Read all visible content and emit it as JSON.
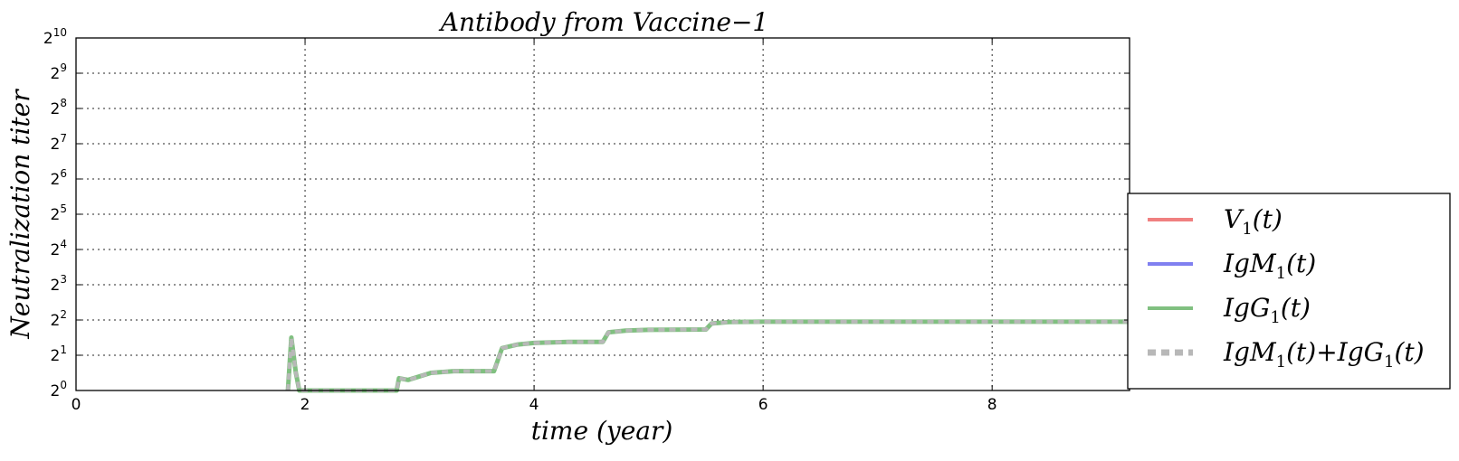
{
  "chart_data": {
    "type": "line",
    "title": "Antibody from Vaccine−1",
    "xlabel": "time (year)",
    "ylabel": "Neutralization titer",
    "xlim": [
      0,
      9.2
    ],
    "ylim_log2": [
      0,
      10
    ],
    "y_scale": "log2",
    "x_ticks": [
      0,
      2,
      4,
      6,
      8
    ],
    "y_ticks_exponent": [
      0,
      1,
      2,
      3,
      4,
      5,
      6,
      7,
      8,
      9,
      10
    ],
    "y_tick_base": "2",
    "grid": true,
    "legend_placement": "lower-right outside",
    "series": [
      {
        "name": "V₁(t)",
        "label_main": "V",
        "label_sub": "1",
        "label_rest": "(t)",
        "color": "#f08080",
        "style": "solid",
        "log2_points": []
      },
      {
        "name": "IgM₁(t)",
        "label_main": "IgM",
        "label_sub": "1",
        "label_rest": "(t)",
        "color": "#8080f0",
        "style": "solid",
        "log2_points": []
      },
      {
        "name": "IgG₁(t)",
        "label_main": "IgG",
        "label_sub": "1",
        "label_rest": "(t)",
        "color": "#80c080",
        "style": "solid",
        "log2_points": [
          [
            1.85,
            0
          ],
          [
            1.88,
            1.5
          ],
          [
            1.92,
            0.5
          ],
          [
            1.95,
            0
          ],
          [
            2.8,
            0
          ],
          [
            2.82,
            0.35
          ],
          [
            2.9,
            0.3
          ],
          [
            3.1,
            0.5
          ],
          [
            3.3,
            0.55
          ],
          [
            3.65,
            0.55
          ],
          [
            3.72,
            1.2
          ],
          [
            3.85,
            1.3
          ],
          [
            4.0,
            1.35
          ],
          [
            4.3,
            1.38
          ],
          [
            4.6,
            1.38
          ],
          [
            4.65,
            1.65
          ],
          [
            4.8,
            1.7
          ],
          [
            5.0,
            1.72
          ],
          [
            5.5,
            1.73
          ],
          [
            5.55,
            1.9
          ],
          [
            5.7,
            1.94
          ],
          [
            6.0,
            1.95
          ],
          [
            7.0,
            1.95
          ],
          [
            8.0,
            1.95
          ],
          [
            9.2,
            1.95
          ]
        ]
      },
      {
        "name": "IgM₁(t)+IgG₁(t)",
        "label_main": "IgM",
        "label_sub": "1",
        "label_rest": "(t)+IgG",
        "label_sub2": "1",
        "label_rest2": "(t)",
        "color": "#b8b8b8",
        "style": "dotted",
        "log2_points": [
          [
            1.85,
            0
          ],
          [
            1.88,
            1.5
          ],
          [
            1.92,
            0.5
          ],
          [
            1.95,
            0
          ],
          [
            2.8,
            0
          ],
          [
            2.82,
            0.35
          ],
          [
            2.9,
            0.3
          ],
          [
            3.1,
            0.5
          ],
          [
            3.3,
            0.55
          ],
          [
            3.65,
            0.55
          ],
          [
            3.72,
            1.2
          ],
          [
            3.85,
            1.3
          ],
          [
            4.0,
            1.35
          ],
          [
            4.3,
            1.38
          ],
          [
            4.6,
            1.38
          ],
          [
            4.65,
            1.65
          ],
          [
            4.8,
            1.7
          ],
          [
            5.0,
            1.72
          ],
          [
            5.5,
            1.73
          ],
          [
            5.55,
            1.9
          ],
          [
            5.7,
            1.94
          ],
          [
            6.0,
            1.95
          ],
          [
            7.0,
            1.95
          ],
          [
            8.0,
            1.95
          ],
          [
            9.2,
            1.95
          ]
        ]
      }
    ]
  }
}
